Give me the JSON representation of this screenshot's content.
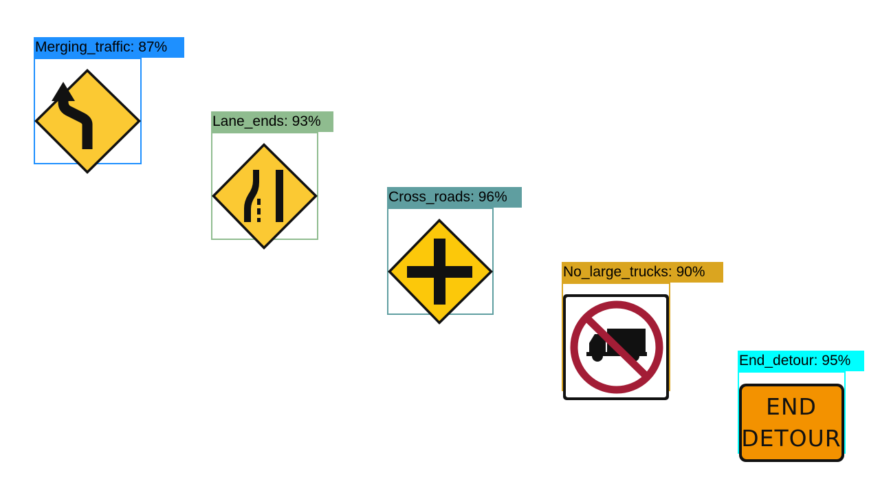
{
  "detections": [
    {
      "id": "merging-traffic",
      "label": "Merging_traffic",
      "score": "87%",
      "color": "#1e90ff",
      "icon": "merging-traffic-sign-icon"
    },
    {
      "id": "lane-ends",
      "label": "Lane_ends",
      "score": "93%",
      "color": "#8fbc8f",
      "icon": "lane-ends-sign-icon"
    },
    {
      "id": "cross-roads",
      "label": "Cross_roads",
      "score": "96%",
      "color": "#5f9ea0",
      "icon": "cross-roads-sign-icon"
    },
    {
      "id": "no-large-trucks",
      "label": "No_large_trucks",
      "score": "90%",
      "color": "#daa520",
      "icon": "no-large-trucks-sign-icon"
    },
    {
      "id": "end-detour",
      "label": "End_detour",
      "score": "95%",
      "color": "#00ffff",
      "icon": "end-detour-sign-icon"
    }
  ],
  "signs": {
    "end_detour_text": [
      "END",
      "DETOUR"
    ]
  }
}
